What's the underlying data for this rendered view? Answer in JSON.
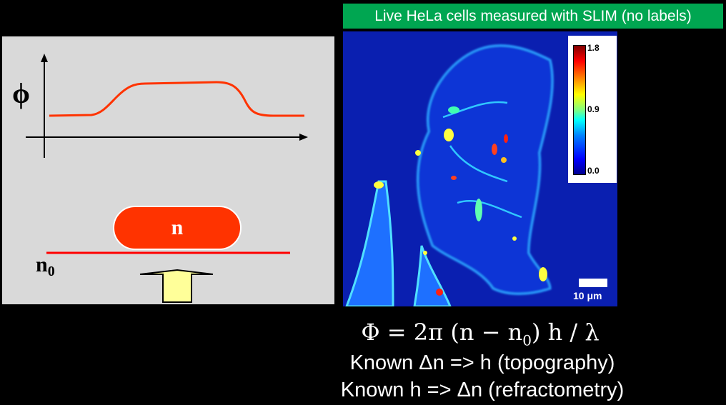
{
  "banner": {
    "text": "Live HeLa cells measured with SLIM (no labels)",
    "color": "#00a651"
  },
  "schematic": {
    "phi_label": "ϕ",
    "sample_label": "n",
    "medium_label": "n",
    "medium_subscript": "0",
    "curve_color": "#ff3300",
    "arrow_color": "#ffff99"
  },
  "colorbar": {
    "max": "1.8",
    "mid": "0.9",
    "min": "0.0"
  },
  "scalebar": {
    "label": "10 μm"
  },
  "equation": {
    "text_left": "Φ = 2π (n − n",
    "sub": "0",
    "text_right": ") h / λ"
  },
  "notes": [
    "Known Δn => h (topography)",
    "Known h => Δn (refractometry)"
  ]
}
